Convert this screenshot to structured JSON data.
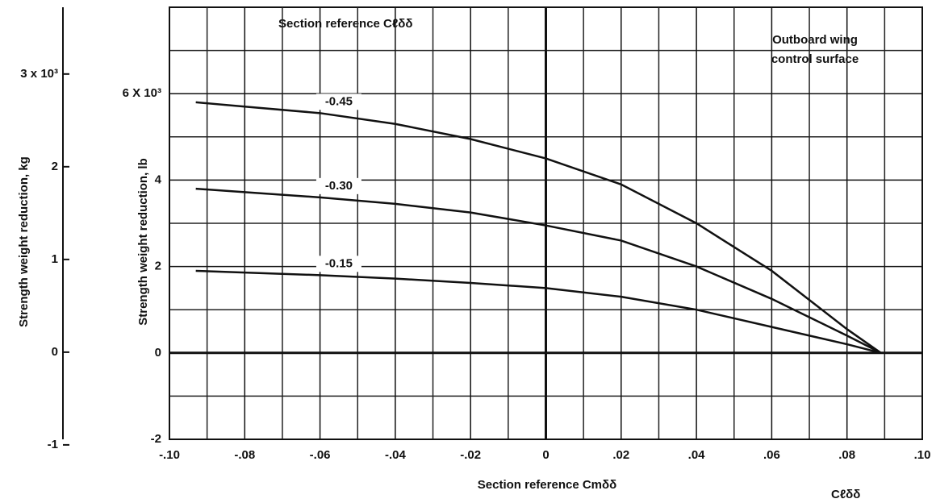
{
  "chart_data": {
    "type": "line",
    "title": "Section reference Cℓδδ",
    "annotations": [
      "Outboard wing",
      "control surface"
    ],
    "corner_label": "Cℓδδ",
    "x_label": "Section reference Cmδδ",
    "y_label": "Strength weight reduction, lb",
    "y2_label": "Strength weight reduction, kg",
    "x": [
      -0.093,
      -0.08,
      -0.06,
      -0.04,
      -0.02,
      0,
      0.02,
      0.04,
      0.06,
      0.08,
      0.089
    ],
    "series": [
      {
        "name": "-0.45",
        "color": "#111111",
        "values": [
          5.8,
          5.7,
          5.55,
          5.3,
          4.95,
          4.5,
          3.9,
          3.0,
          1.9,
          0.55,
          0
        ]
      },
      {
        "name": "-0.30",
        "color": "#111111",
        "values": [
          3.8,
          3.72,
          3.6,
          3.45,
          3.25,
          2.95,
          2.6,
          2.0,
          1.25,
          0.4,
          0
        ]
      },
      {
        "name": "-0.15",
        "color": "#111111",
        "values": [
          1.9,
          1.86,
          1.8,
          1.72,
          1.62,
          1.5,
          1.3,
          1.0,
          0.6,
          0.2,
          0
        ]
      }
    ],
    "xlim": [
      -0.1,
      0.1
    ],
    "xticks": [
      {
        "value": -0.1,
        "label": "-.10"
      },
      {
        "value": -0.08,
        "label": "-.08"
      },
      {
        "value": -0.06,
        "label": "-.06"
      },
      {
        "value": -0.04,
        "label": "-.04"
      },
      {
        "value": -0.02,
        "label": "-.02"
      },
      0,
      {
        "value": 0.02,
        "label": ".02"
      },
      {
        "value": 0.04,
        "label": ".04"
      },
      {
        "value": 0.06,
        "label": ".06"
      },
      {
        "value": 0.08,
        "label": ".08"
      },
      {
        "value": 0.1,
        "label": ".10"
      }
    ],
    "xminor": [
      -0.09,
      -0.07,
      -0.05,
      -0.03,
      -0.01,
      0.01,
      0.03,
      0.05,
      0.07,
      0.09
    ],
    "ylim": [
      -2,
      8
    ],
    "yticks": [
      -2,
      0,
      2,
      4,
      {
        "value": 6,
        "label": "6 X 10³"
      }
    ],
    "yminor": [
      -1,
      1,
      3,
      5,
      7
    ],
    "y2lim": [
      -0.94,
      3.72
    ],
    "y2ticks": [
      -1,
      0,
      1,
      2,
      {
        "value": 3,
        "label": "3 x 10³"
      }
    ],
    "grid": true
  }
}
